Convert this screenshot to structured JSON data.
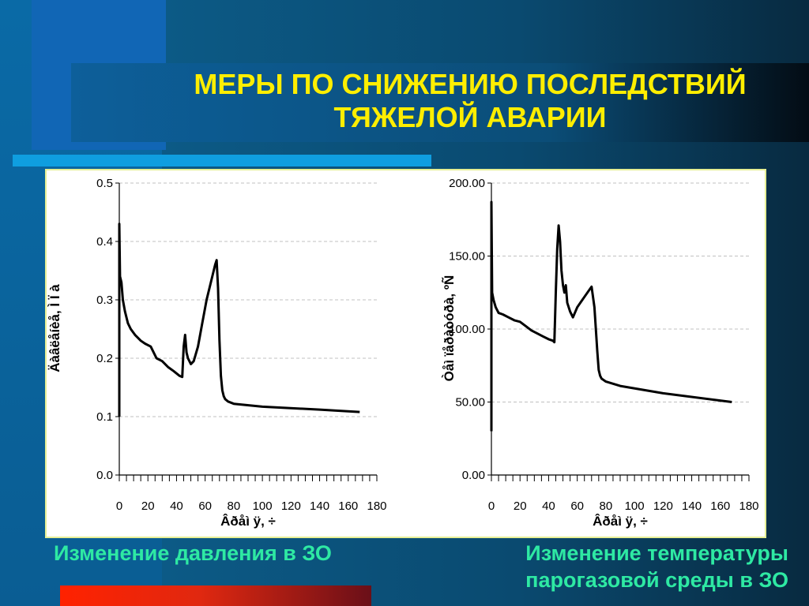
{
  "slide": {
    "title_line1": "МЕРЫ ПО СНИЖЕНИЮ ПОСЛЕДСТВИЙ",
    "title_line2": "ТЯЖЕЛОЙ АВАРИИ",
    "caption_left": "Изменение давления в ЗО",
    "caption_right_line1": "Изменение температуры",
    "caption_right_line2": "парогазовой среды в ЗО"
  },
  "colors": {
    "title": "#ffee00",
    "caption": "#2ee9a3",
    "line": "#000000",
    "grid": "#c0c0c0"
  },
  "chart_data": [
    {
      "type": "line",
      "xlabel": "Âðåì ÿ, ÷",
      "ylabel": "Äàâëåíèå, Ì Ï à",
      "xlim": [
        0,
        180
      ],
      "ylim": [
        0,
        0.5
      ],
      "xticks": [
        "0",
        "20",
        "40",
        "60",
        "80",
        "100",
        "120",
        "140",
        "160",
        "180"
      ],
      "yticks": [
        "0.0",
        "0.1",
        "0.2",
        "0.3",
        "0.4",
        "0.5"
      ],
      "grid": "horizontal-dashed",
      "series": [
        {
          "x": [
            0,
            0,
            0.5,
            1.5,
            2.5,
            4,
            6,
            8,
            11,
            15,
            18,
            22,
            26,
            30,
            34,
            38,
            42,
            44,
            45,
            46,
            47,
            48,
            50,
            52,
            55,
            58,
            61,
            64,
            67,
            68,
            69,
            70,
            71,
            72,
            73,
            74,
            76,
            80,
            100,
            140,
            168
          ],
          "y": [
            0.1,
            0.43,
            0.34,
            0.33,
            0.3,
            0.28,
            0.26,
            0.25,
            0.24,
            0.23,
            0.225,
            0.22,
            0.2,
            0.195,
            0.185,
            0.178,
            0.17,
            0.168,
            0.22,
            0.24,
            0.21,
            0.2,
            0.19,
            0.195,
            0.22,
            0.26,
            0.3,
            0.33,
            0.36,
            0.368,
            0.32,
            0.23,
            0.17,
            0.145,
            0.135,
            0.13,
            0.126,
            0.122,
            0.117,
            0.112,
            0.108
          ]
        }
      ]
    },
    {
      "type": "line",
      "xlabel": "Âðåì ÿ, ÷",
      "ylabel": "Òåì ïåðàòóðà, ºÑ",
      "xlim": [
        0,
        180
      ],
      "ylim": [
        0,
        200
      ],
      "xticks": [
        "0",
        "20",
        "40",
        "60",
        "80",
        "100",
        "120",
        "140",
        "160",
        "180"
      ],
      "yticks": [
        "0.00",
        "50.00",
        "100.00",
        "150.00",
        "200.00"
      ],
      "grid": "horizontal-dashed",
      "series": [
        {
          "x": [
            0,
            0,
            0.5,
            1.5,
            3,
            5,
            8,
            12,
            16,
            20,
            24,
            28,
            32,
            36,
            40,
            43,
            44,
            45,
            46,
            47,
            48,
            49,
            50,
            51,
            52,
            53,
            55,
            57,
            60,
            65,
            70,
            72,
            73,
            74,
            75,
            76,
            77,
            80,
            90,
            120,
            168
          ],
          "y": [
            30,
            187,
            125,
            120,
            115,
            111,
            110,
            108,
            106,
            105,
            102,
            99,
            97,
            95,
            93,
            92,
            91,
            125,
            155,
            171,
            160,
            140,
            130,
            125,
            130,
            118,
            112,
            108,
            115,
            122,
            129,
            115,
            100,
            85,
            72,
            68,
            66,
            64,
            61,
            56,
            50
          ]
        }
      ]
    }
  ]
}
